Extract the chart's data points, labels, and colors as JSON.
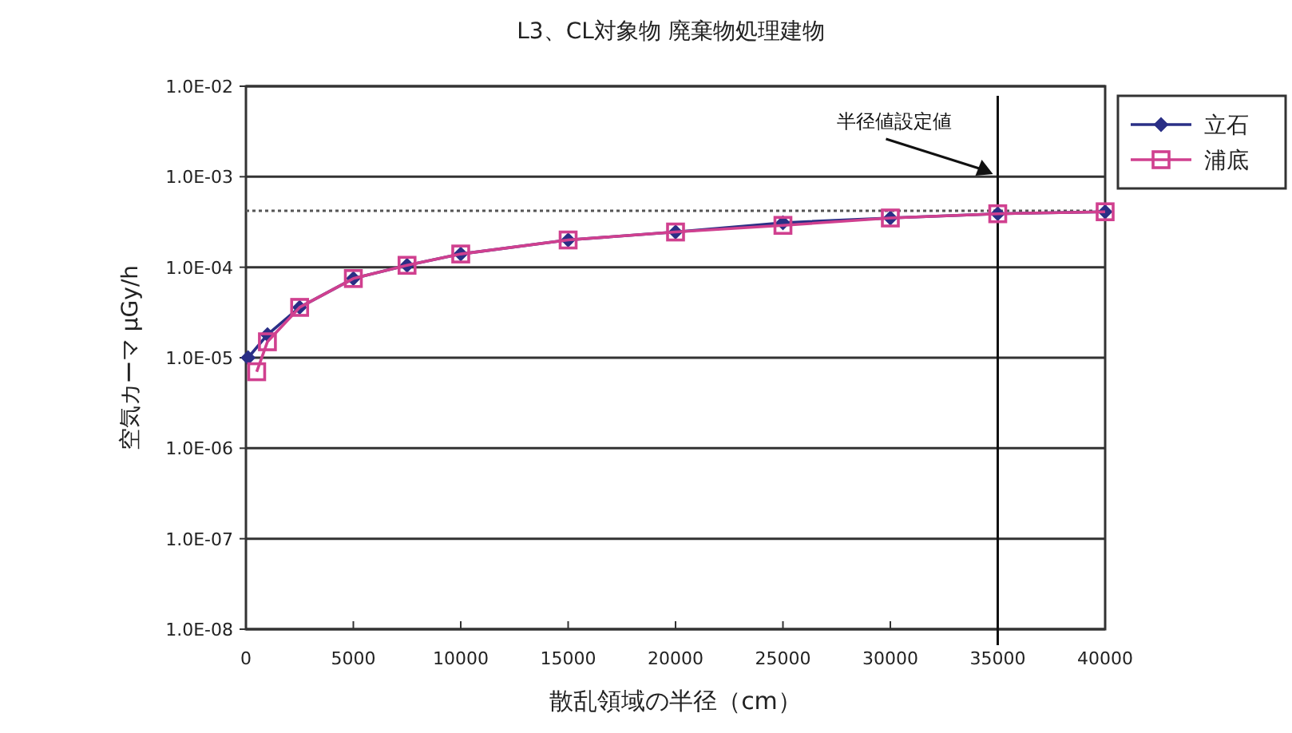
{
  "chart_data": {
    "type": "line",
    "title": "L3、CL対象物 廃棄物処理建物",
    "xlabel": "散乱領域の半径（cm）",
    "ylabel": "空気カーマ μGy/h",
    "log": "y",
    "grid": "y",
    "legend": "top right",
    "xlim": [
      0,
      40000
    ],
    "xticks": [
      0,
      5000,
      10000,
      15000,
      20000,
      25000,
      30000,
      35000,
      40000
    ],
    "ylim": [
      1e-08,
      0.01
    ],
    "yticks": [
      {
        "value": 1e-08,
        "label": "1.0E-08"
      },
      {
        "value": 1e-07,
        "label": "1.0E-07"
      },
      {
        "value": 1e-06,
        "label": "1.0E-06"
      },
      {
        "value": 1e-05,
        "label": "1.0E-05"
      },
      {
        "value": 0.0001,
        "label": "1.0E-04"
      },
      {
        "value": 0.001,
        "label": "1.0E-03"
      },
      {
        "value": 0.01,
        "label": "1.0E-02"
      }
    ],
    "series": [
      {
        "name": "立石",
        "color": "#2a2f86",
        "marker": "diamond",
        "x": [
          100,
          1000,
          2500,
          5000,
          7500,
          10000,
          15000,
          20000,
          25000,
          30000,
          35000,
          40000
        ],
        "values": [
          1e-05,
          1.8e-05,
          3.6e-05,
          7.5e-05,
          0.000105,
          0.00014,
          0.0002,
          0.000245,
          0.00031,
          0.00035,
          0.00039,
          0.00041
        ]
      },
      {
        "name": "浦底",
        "color": "#d0408f",
        "marker": "square",
        "x": [
          500,
          1000,
          2500,
          5000,
          7500,
          10000,
          15000,
          20000,
          25000,
          30000,
          35000,
          40000
        ],
        "values": [
          7e-06,
          1.5e-05,
          3.6e-05,
          7.5e-05,
          0.000105,
          0.00014,
          0.0002,
          0.000245,
          0.00029,
          0.00035,
          0.00039,
          0.00041
        ]
      }
    ],
    "ref_lines": [
      {
        "axis": "y",
        "value": 0.00042,
        "line_style": "dotted",
        "color": "#555555"
      },
      {
        "axis": "x",
        "value": 35000,
        "label": "半径値設定値",
        "color": "#111111"
      }
    ]
  }
}
